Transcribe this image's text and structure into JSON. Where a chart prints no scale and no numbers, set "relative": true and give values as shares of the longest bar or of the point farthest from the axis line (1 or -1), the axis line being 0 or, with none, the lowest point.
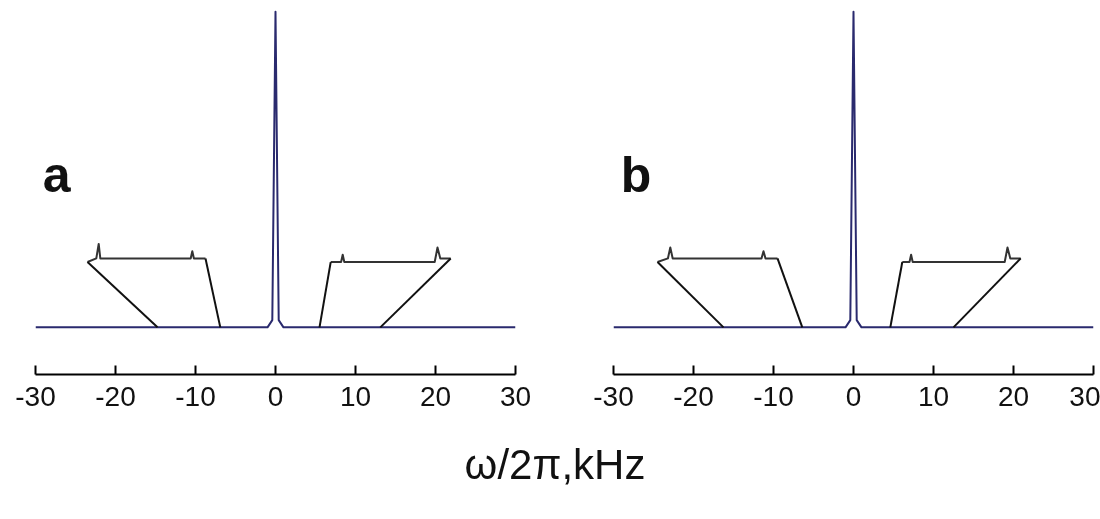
{
  "chart_data": [
    {
      "type": "line",
      "title": "a",
      "xlabel": "ω/2π,kHz",
      "relative": true,
      "xlim": [
        -30,
        30
      ],
      "xticks": [
        -30,
        -20,
        -10,
        0,
        10,
        20,
        30
      ],
      "tick_labels": "x",
      "series": [
        {
          "color": "#2a2a6e",
          "x": [
            -30,
            -1,
            -0.4,
            0,
            0.4,
            1,
            30
          ],
          "values": [
            0.13,
            0.13,
            0.15,
            1,
            0.15,
            0.13,
            0.13
          ]
        },
        {
          "color": "#333333",
          "x": [
            -23.5,
            -22.4,
            -22.1,
            -21.9,
            -10.6,
            -10.4,
            -10.2,
            -8.75
          ],
          "values": [
            0.31,
            0.32,
            0.36,
            0.32,
            0.32,
            0.34,
            0.32,
            0.32
          ]
        },
        {
          "color": "#333333",
          "x": [
            6.9,
            8.2,
            8.4,
            8.6,
            19.9,
            20.25,
            20.6,
            21.9
          ],
          "values": [
            0.31,
            0.31,
            0.33,
            0.31,
            0.31,
            0.35,
            0.32,
            0.32
          ]
        },
        {
          "color": "#111111",
          "x": [
            -23.5,
            -14.75
          ],
          "values": [
            0.31,
            0.13
          ]
        },
        {
          "color": "#111111",
          "x": [
            -8.75,
            -6.9
          ],
          "values": [
            0.32,
            0.13
          ]
        },
        {
          "color": "#111111",
          "x": [
            6.9,
            5.5
          ],
          "values": [
            0.31,
            0.13
          ]
        },
        {
          "color": "#111111",
          "x": [
            21.9,
            13.1
          ],
          "values": [
            0.32,
            0.13
          ]
        }
      ]
    },
    {
      "type": "line",
      "title": "b",
      "relative": true,
      "xlim": [
        -30,
        30
      ],
      "xticks": [
        -30,
        -20,
        -10,
        0,
        10,
        20,
        30
      ],
      "tick_labels": "x",
      "series": [
        {
          "color": "#2a2a6e",
          "x": [
            -30,
            -1,
            -0.4,
            0,
            0.4,
            1,
            30
          ],
          "values": [
            0.13,
            0.13,
            0.15,
            1,
            0.15,
            0.13,
            0.13
          ]
        },
        {
          "color": "#333333",
          "x": [
            -24.5,
            -23.2,
            -22.9,
            -22.6,
            -11.5,
            -11.25,
            -11.0,
            -9.5
          ],
          "values": [
            0.31,
            0.32,
            0.35,
            0.32,
            0.32,
            0.34,
            0.32,
            0.32
          ]
        },
        {
          "color": "#333333",
          "x": [
            6.1,
            7.0,
            7.2,
            7.4,
            18.9,
            19.25,
            19.6,
            20.9
          ],
          "values": [
            0.31,
            0.31,
            0.33,
            0.31,
            0.31,
            0.35,
            0.32,
            0.32
          ]
        },
        {
          "color": "#111111",
          "x": [
            -24.5,
            -16.25
          ],
          "values": [
            0.31,
            0.13
          ]
        },
        {
          "color": "#111111",
          "x": [
            -9.5,
            -6.4
          ],
          "values": [
            0.32,
            0.13
          ]
        },
        {
          "color": "#111111",
          "x": [
            6.1,
            4.6
          ],
          "values": [
            0.31,
            0.13
          ]
        },
        {
          "color": "#111111",
          "x": [
            20.9,
            12.5
          ],
          "values": [
            0.32,
            0.13
          ]
        }
      ]
    }
  ]
}
